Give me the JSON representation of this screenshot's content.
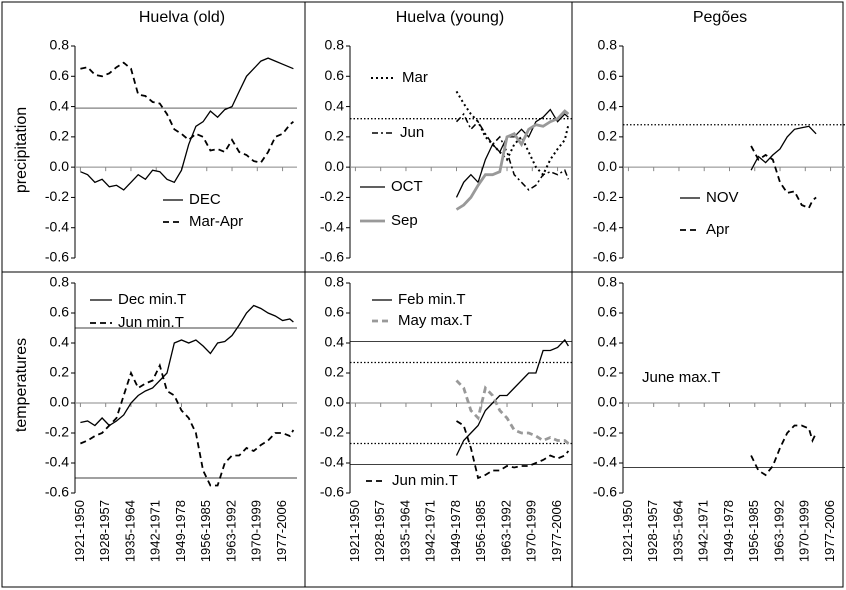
{
  "chart_data": [
    {
      "type": "line",
      "title": "Huelva (old)",
      "ylabel": "precipitation",
      "xlim": [
        1919.5,
        1981
      ],
      "ylim": [
        -0.6,
        0.8
      ],
      "yticks": [
        -0.6,
        -0.4,
        -0.2,
        {
          "value": 0,
          "label": "0.0"
        },
        0.2,
        0.4,
        0.6,
        0.8
      ],
      "xticks": [
        {
          "value": 1921,
          "label": "1921-1950"
        },
        {
          "value": 1928,
          "label": "1928-1957"
        },
        {
          "value": 1935,
          "label": "1935-1964"
        },
        {
          "value": 1942,
          "label": "1942-1971"
        },
        {
          "value": 1949,
          "label": "1949-1978"
        },
        {
          "value": 1956,
          "label": "1956-1985"
        },
        {
          "value": 1963,
          "label": "1963-1992"
        },
        {
          "value": 1970,
          "label": "1970-1999"
        },
        {
          "value": 1977,
          "label": "1977-2006"
        }
      ],
      "reference_lines": [
        {
          "value": 0.39,
          "style": "solid"
        }
      ],
      "series": [
        {
          "name": "DEC",
          "color": "#000000",
          "dash": "solid",
          "x": [
            1921,
            1923,
            1925,
            1927,
            1929,
            1931,
            1933,
            1935,
            1937,
            1939,
            1941,
            1943,
            1945,
            1947,
            1949,
            1951,
            1953,
            1955,
            1957,
            1959,
            1961,
            1963,
            1965,
            1967,
            1969,
            1971,
            1973,
            1975,
            1977,
            1979,
            1980
          ],
          "values": [
            -0.03,
            -0.05,
            -0.1,
            -0.08,
            -0.13,
            -0.12,
            -0.15,
            -0.1,
            -0.05,
            -0.08,
            -0.02,
            -0.03,
            -0.08,
            -0.1,
            -0.02,
            0.15,
            0.27,
            0.3,
            0.37,
            0.33,
            0.38,
            0.4,
            0.5,
            0.6,
            0.65,
            0.7,
            0.72,
            0.7,
            0.68,
            0.66,
            0.65
          ]
        },
        {
          "name": "Mar-Apr",
          "color": "#000000",
          "dash": "dashed",
          "x": [
            1921,
            1923,
            1925,
            1927,
            1929,
            1931,
            1933,
            1935,
            1937,
            1939,
            1941,
            1943,
            1945,
            1947,
            1949,
            1951,
            1953,
            1955,
            1957,
            1959,
            1961,
            1963,
            1965,
            1967,
            1969,
            1971,
            1973,
            1975,
            1977,
            1979,
            1980
          ],
          "values": [
            0.65,
            0.66,
            0.61,
            0.6,
            0.62,
            0.66,
            0.69,
            0.65,
            0.48,
            0.47,
            0.43,
            0.42,
            0.35,
            0.25,
            0.22,
            0.18,
            0.22,
            0.2,
            0.11,
            0.12,
            0.1,
            0.18,
            0.1,
            0.08,
            0.04,
            0.03,
            0.1,
            0.2,
            0.22,
            0.28,
            0.3
          ]
        }
      ]
    },
    {
      "type": "line",
      "title": "Huelva (young)",
      "xlim": [
        1919.5,
        1981
      ],
      "ylim": [
        -0.6,
        0.8
      ],
      "yticks": [
        -0.6,
        -0.4,
        -0.2,
        {
          "value": 0,
          "label": "0.0"
        },
        0.2,
        0.4,
        0.6,
        0.8
      ],
      "xticks": [
        {
          "value": 1921,
          "label": "1921-1950"
        },
        {
          "value": 1928,
          "label": "1928-1957"
        },
        {
          "value": 1935,
          "label": "1935-1964"
        },
        {
          "value": 1942,
          "label": "1942-1971"
        },
        {
          "value": 1949,
          "label": "1949-1978"
        },
        {
          "value": 1956,
          "label": "1956-1985"
        },
        {
          "value": 1963,
          "label": "1963-1992"
        },
        {
          "value": 1970,
          "label": "1970-1999"
        },
        {
          "value": 1977,
          "label": "1977-2006"
        }
      ],
      "reference_lines": [
        {
          "value": 0.32,
          "style": "dotted"
        }
      ],
      "series": [
        {
          "name": "Mar",
          "color": "#000000",
          "dash": "dotted",
          "x": [
            1949,
            1951,
            1953,
            1955,
            1957,
            1959,
            1961,
            1963,
            1965,
            1967,
            1969,
            1971,
            1973,
            1975,
            1977,
            1979,
            1980
          ],
          "values": [
            0.5,
            0.42,
            0.35,
            0.3,
            0.2,
            0.15,
            0.1,
            0.05,
            0.15,
            0.2,
            0.1,
            0.0,
            -0.05,
            0.05,
            0.12,
            0.18,
            0.28
          ]
        },
        {
          "name": "Jun",
          "color": "#000000",
          "dash": "dashdot",
          "x": [
            1949,
            1951,
            1953,
            1955,
            1957,
            1959,
            1961,
            1963,
            1965,
            1967,
            1969,
            1971,
            1973,
            1975,
            1977,
            1979,
            1980
          ],
          "values": [
            0.3,
            0.35,
            0.25,
            0.3,
            0.22,
            0.15,
            0.2,
            0.1,
            -0.05,
            -0.1,
            -0.15,
            -0.12,
            -0.05,
            -0.03,
            -0.05,
            -0.02,
            -0.08
          ]
        },
        {
          "name": "OCT",
          "color": "#000000",
          "dash": "solid",
          "x": [
            1949,
            1951,
            1953,
            1955,
            1957,
            1959,
            1961,
            1963,
            1965,
            1967,
            1969,
            1971,
            1973,
            1975,
            1977,
            1979,
            1980
          ],
          "values": [
            -0.2,
            -0.1,
            -0.05,
            -0.1,
            0.05,
            0.15,
            0.1,
            0.2,
            0.2,
            0.25,
            0.2,
            0.3,
            0.33,
            0.38,
            0.3,
            0.35,
            0.33
          ]
        },
        {
          "name": "Sep",
          "color": "#999999",
          "dash": "thick",
          "x": [
            1949,
            1951,
            1953,
            1955,
            1957,
            1959,
            1961,
            1963,
            1965,
            1967,
            1969,
            1971,
            1973,
            1975,
            1977,
            1979,
            1980
          ],
          "values": [
            -0.28,
            -0.25,
            -0.2,
            -0.12,
            -0.05,
            -0.05,
            -0.03,
            0.2,
            0.22,
            0.15,
            0.25,
            0.28,
            0.27,
            0.3,
            0.32,
            0.37,
            0.35
          ]
        }
      ]
    },
    {
      "type": "line",
      "title": "Pegões",
      "xlim": [
        1919.5,
        1981
      ],
      "ylim": [
        -0.6,
        0.8
      ],
      "yticks": [
        -0.6,
        -0.4,
        -0.2,
        {
          "value": 0,
          "label": "0.0"
        },
        0.2,
        0.4,
        0.6,
        0.8
      ],
      "xticks": [
        {
          "value": 1921,
          "label": "1921-1950"
        },
        {
          "value": 1928,
          "label": "1928-1957"
        },
        {
          "value": 1935,
          "label": "1935-1964"
        },
        {
          "value": 1942,
          "label": "1942-1971"
        },
        {
          "value": 1949,
          "label": "1949-1978"
        },
        {
          "value": 1956,
          "label": "1956-1985"
        },
        {
          "value": 1963,
          "label": "1963-1992"
        },
        {
          "value": 1970,
          "label": "1970-1999"
        },
        {
          "value": 1977,
          "label": "1977-2006"
        }
      ],
      "reference_lines": [
        {
          "value": 0.28,
          "style": "dotted"
        }
      ],
      "series": [
        {
          "name": "NOV",
          "color": "#000000",
          "dash": "solid",
          "x": [
            1955,
            1957,
            1959,
            1961,
            1963,
            1965,
            1967,
            1969,
            1971,
            1973
          ],
          "values": [
            -0.02,
            0.07,
            0.03,
            0.08,
            0.12,
            0.2,
            0.25,
            0.26,
            0.27,
            0.22
          ]
        },
        {
          "name": "Apr",
          "color": "#000000",
          "dash": "dashed",
          "x": [
            1955,
            1957,
            1959,
            1961,
            1963,
            1965,
            1967,
            1969,
            1971,
            1972,
            1973
          ],
          "values": [
            0.14,
            0.05,
            0.08,
            0.05,
            -0.1,
            -0.17,
            -0.16,
            -0.25,
            -0.27,
            -0.22,
            -0.2
          ]
        }
      ]
    },
    {
      "type": "line",
      "ylabel": "temperatures",
      "xlim": [
        1919.5,
        1981
      ],
      "ylim": [
        -0.6,
        0.8
      ],
      "yticks": [
        -0.6,
        -0.4,
        -0.2,
        {
          "value": 0,
          "label": "0.0"
        },
        0.2,
        0.4,
        0.6,
        0.8
      ],
      "xticks": [
        {
          "value": 1921,
          "label": "1921-1950"
        },
        {
          "value": 1928,
          "label": "1928-1957"
        },
        {
          "value": 1935,
          "label": "1935-1964"
        },
        {
          "value": 1942,
          "label": "1942-1971"
        },
        {
          "value": 1949,
          "label": "1949-1978"
        },
        {
          "value": 1956,
          "label": "1956-1985"
        },
        {
          "value": 1963,
          "label": "1963-1992"
        },
        {
          "value": 1970,
          "label": "1970-1999"
        },
        {
          "value": 1977,
          "label": "1977-2006"
        }
      ],
      "reference_lines": [
        {
          "value": 0.5,
          "style": "solid"
        },
        {
          "value": -0.5,
          "style": "solid"
        }
      ],
      "series": [
        {
          "name": "Dec min.T",
          "color": "#000000",
          "dash": "solid",
          "x": [
            1921,
            1923,
            1925,
            1927,
            1929,
            1931,
            1933,
            1935,
            1937,
            1939,
            1941,
            1943,
            1945,
            1947,
            1949,
            1951,
            1953,
            1955,
            1957,
            1959,
            1961,
            1963,
            1965,
            1967,
            1969,
            1971,
            1973,
            1975,
            1977,
            1979,
            1980
          ],
          "values": [
            -0.13,
            -0.12,
            -0.15,
            -0.1,
            -0.15,
            -0.12,
            -0.08,
            0.0,
            0.05,
            0.08,
            0.1,
            0.15,
            0.2,
            0.4,
            0.42,
            0.4,
            0.42,
            0.38,
            0.33,
            0.4,
            0.41,
            0.45,
            0.52,
            0.6,
            0.65,
            0.63,
            0.6,
            0.58,
            0.55,
            0.56,
            0.54
          ]
        },
        {
          "name": "Jun min.T",
          "color": "#000000",
          "dash": "dashed",
          "x": [
            1921,
            1923,
            1925,
            1927,
            1929,
            1931,
            1933,
            1935,
            1937,
            1939,
            1941,
            1943,
            1945,
            1947,
            1949,
            1951,
            1953,
            1955,
            1957,
            1959,
            1961,
            1963,
            1965,
            1967,
            1969,
            1971,
            1973,
            1975,
            1977,
            1979,
            1980
          ],
          "values": [
            -0.27,
            -0.25,
            -0.22,
            -0.2,
            -0.15,
            -0.1,
            0.05,
            0.2,
            0.1,
            0.13,
            0.15,
            0.25,
            0.08,
            0.05,
            -0.05,
            -0.1,
            -0.2,
            -0.45,
            -0.55,
            -0.55,
            -0.4,
            -0.35,
            -0.35,
            -0.3,
            -0.32,
            -0.28,
            -0.25,
            -0.2,
            -0.2,
            -0.22,
            -0.18
          ]
        }
      ]
    },
    {
      "type": "line",
      "xlim": [
        1919.5,
        1981
      ],
      "ylim": [
        -0.6,
        0.8
      ],
      "yticks": [
        -0.6,
        -0.4,
        -0.2,
        {
          "value": 0,
          "label": "0.0"
        },
        0.2,
        0.4,
        0.6,
        0.8
      ],
      "xticks": [
        {
          "value": 1921,
          "label": "1921-1950"
        },
        {
          "value": 1928,
          "label": "1928-1957"
        },
        {
          "value": 1935,
          "label": "1935-1964"
        },
        {
          "value": 1942,
          "label": "1942-1971"
        },
        {
          "value": 1949,
          "label": "1949-1978"
        },
        {
          "value": 1956,
          "label": "1956-1985"
        },
        {
          "value": 1963,
          "label": "1963-1992"
        },
        {
          "value": 1970,
          "label": "1970-1999"
        },
        {
          "value": 1977,
          "label": "1977-2006"
        }
      ],
      "reference_lines": [
        {
          "value": 0.41,
          "style": "solid"
        },
        {
          "value": 0.27,
          "style": "dotted"
        },
        {
          "value": -0.27,
          "style": "dotted"
        },
        {
          "value": -0.41,
          "style": "solid"
        }
      ],
      "series": [
        {
          "name": "Feb min.T",
          "color": "#000000",
          "dash": "solid",
          "x": [
            1949,
            1951,
            1953,
            1955,
            1957,
            1959,
            1961,
            1963,
            1965,
            1967,
            1969,
            1971,
            1973,
            1975,
            1977,
            1979,
            1980
          ],
          "values": [
            -0.35,
            -0.25,
            -0.2,
            -0.15,
            -0.05,
            0.0,
            0.05,
            0.05,
            0.1,
            0.15,
            0.2,
            0.2,
            0.35,
            0.35,
            0.37,
            0.42,
            0.38
          ]
        },
        {
          "name": "May max.T",
          "color": "#999999",
          "dash": "grayDashed",
          "x": [
            1949,
            1951,
            1953,
            1955,
            1957,
            1959,
            1961,
            1963,
            1965,
            1967,
            1969,
            1971,
            1973,
            1975,
            1977,
            1979,
            1980
          ],
          "values": [
            0.15,
            0.1,
            -0.05,
            -0.1,
            0.1,
            0.05,
            -0.05,
            -0.1,
            -0.18,
            -0.2,
            -0.2,
            -0.22,
            -0.25,
            -0.23,
            -0.25,
            -0.25,
            -0.27
          ]
        },
        {
          "name": "Jun min.T",
          "color": "#000000",
          "dash": "dashed",
          "x": [
            1949,
            1951,
            1953,
            1955,
            1957,
            1959,
            1961,
            1963,
            1965,
            1967,
            1969,
            1971,
            1973,
            1975,
            1977,
            1979,
            1980
          ],
          "values": [
            -0.12,
            -0.15,
            -0.3,
            -0.5,
            -0.48,
            -0.45,
            -0.45,
            -0.42,
            -0.43,
            -0.42,
            -0.42,
            -0.4,
            -0.38,
            -0.35,
            -0.37,
            -0.35,
            -0.32
          ]
        }
      ]
    },
    {
      "type": "line",
      "xlim": [
        1919.5,
        1981
      ],
      "ylim": [
        -0.6,
        0.8
      ],
      "yticks": [
        -0.6,
        -0.4,
        -0.2,
        {
          "value": 0,
          "label": "0.0"
        },
        0.2,
        0.4,
        0.6,
        0.8
      ],
      "xticks": [
        {
          "value": 1921,
          "label": "1921-1950"
        },
        {
          "value": 1928,
          "label": "1928-1957"
        },
        {
          "value": 1935,
          "label": "1935-1964"
        },
        {
          "value": 1942,
          "label": "1942-1971"
        },
        {
          "value": 1949,
          "label": "1949-1978"
        },
        {
          "value": 1956,
          "label": "1956-1985"
        },
        {
          "value": 1963,
          "label": "1963-1992"
        },
        {
          "value": 1970,
          "label": "1970-1999"
        },
        {
          "value": 1977,
          "label": "1977-2006"
        }
      ],
      "reference_lines": [
        {
          "value": -0.43,
          "style": "solid"
        }
      ],
      "series": [
        {
          "name": "June max.T",
          "color": "#000000",
          "dash": "dashed",
          "x": [
            1955,
            1957,
            1959,
            1961,
            1963,
            1965,
            1967,
            1969,
            1971,
            1972,
            1973
          ],
          "values": [
            -0.35,
            -0.45,
            -0.48,
            -0.42,
            -0.3,
            -0.2,
            -0.15,
            -0.15,
            -0.17,
            -0.25,
            -0.2
          ]
        }
      ]
    }
  ]
}
